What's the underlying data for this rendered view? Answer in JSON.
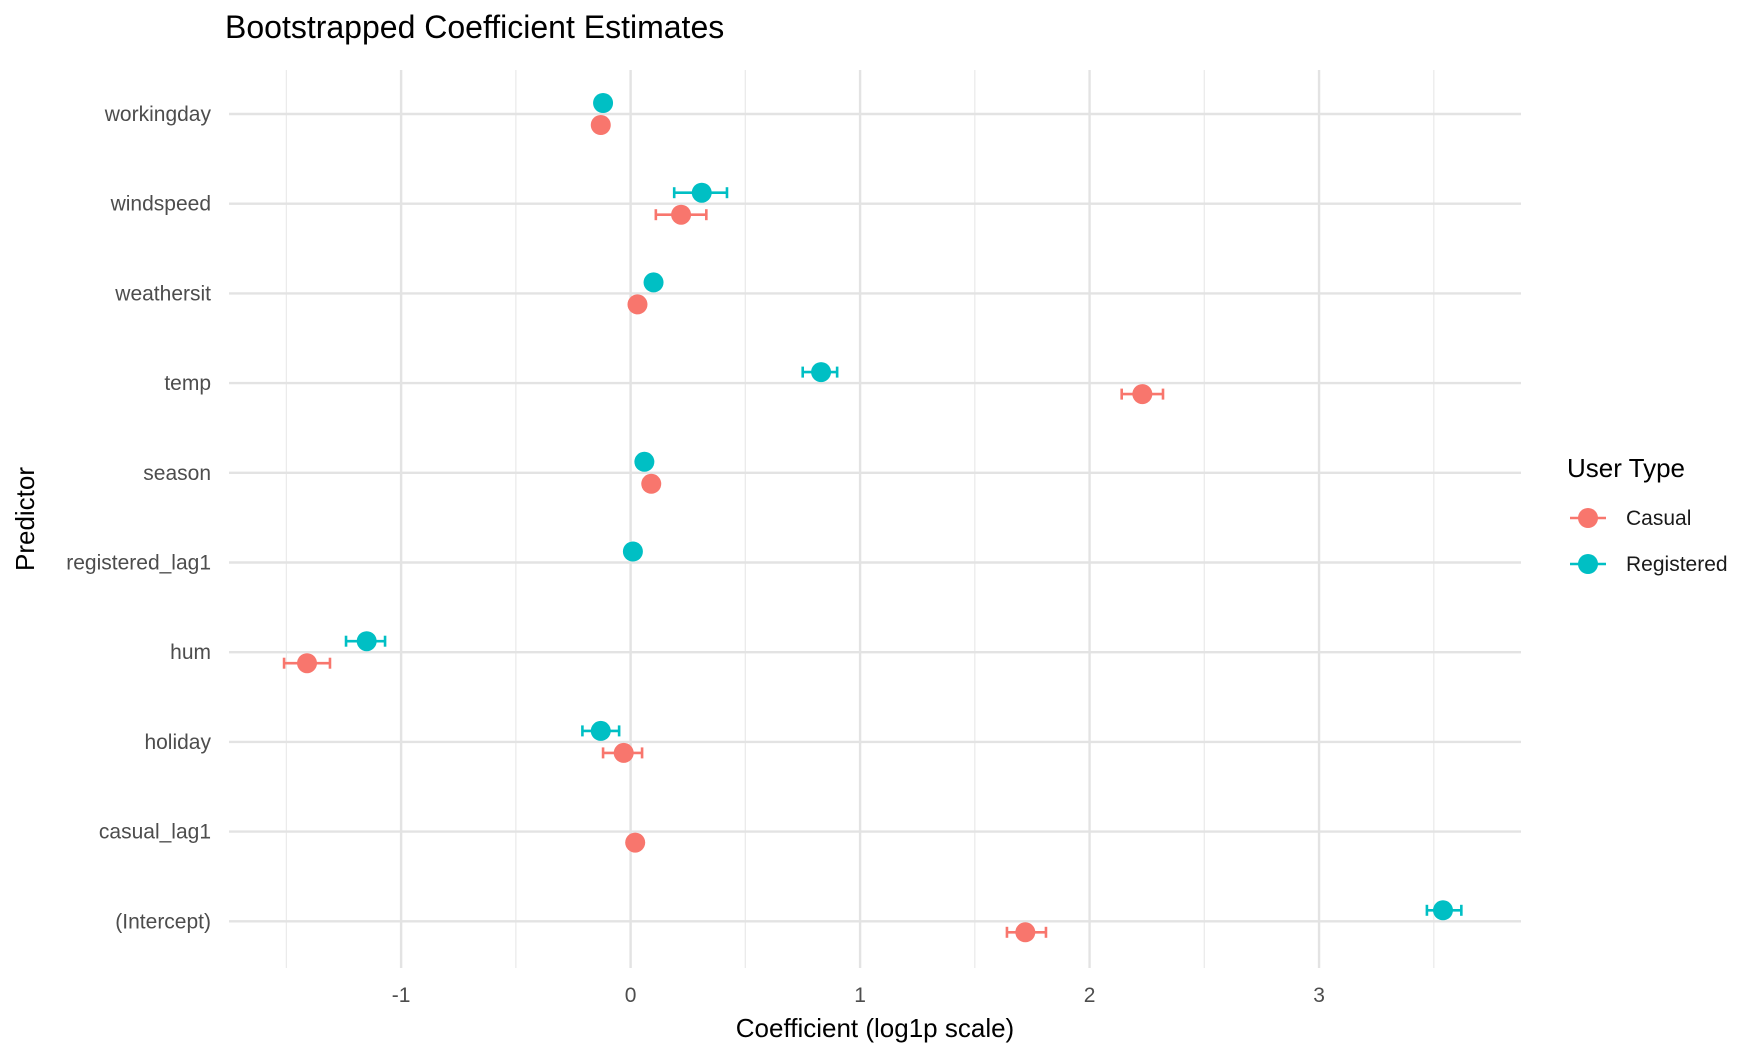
{
  "chart_data": {
    "type": "scatter",
    "subtype": "dot-and-errorbar",
    "title": "Bootstrapped Coefficient Estimates",
    "xlabel": "Coefficient (log1p scale)",
    "ylabel": "Predictor",
    "xlim": [
      -1.75,
      3.88
    ],
    "x_ticks": [
      -1,
      0,
      1,
      2,
      3
    ],
    "x_tick_labels": [
      "-1",
      "0",
      "1",
      "2",
      "3"
    ],
    "x_minor_ticks": [
      -1.5,
      -0.5,
      0.5,
      1.5,
      2.5,
      3.5
    ],
    "categories": [
      "workingday",
      "windspeed",
      "weathersit",
      "temp",
      "season",
      "registered_lag1",
      "hum",
      "holiday",
      "casual_lag1",
      "(Intercept)"
    ],
    "legend": {
      "title": "User Type",
      "position": "right"
    },
    "grid": true,
    "series": [
      {
        "name": "Casual",
        "color": "#F8766D",
        "points": [
          {
            "category": "workingday",
            "value": -0.13,
            "lower": null,
            "upper": null
          },
          {
            "category": "windspeed",
            "value": 0.22,
            "lower": 0.11,
            "upper": 0.33
          },
          {
            "category": "weathersit",
            "value": 0.03,
            "lower": null,
            "upper": null
          },
          {
            "category": "temp",
            "value": 2.23,
            "lower": 2.14,
            "upper": 2.32
          },
          {
            "category": "season",
            "value": 0.09,
            "lower": null,
            "upper": null
          },
          {
            "category": "hum",
            "value": -1.41,
            "lower": -1.51,
            "upper": -1.31
          },
          {
            "category": "holiday",
            "value": -0.03,
            "lower": -0.12,
            "upper": 0.05
          },
          {
            "category": "casual_lag1",
            "value": 0.02,
            "lower": null,
            "upper": null
          },
          {
            "category": "(Intercept)",
            "value": 1.72,
            "lower": 1.64,
            "upper": 1.81
          }
        ]
      },
      {
        "name": "Registered",
        "color": "#00BFC4",
        "points": [
          {
            "category": "workingday",
            "value": -0.12,
            "lower": null,
            "upper": null
          },
          {
            "category": "windspeed",
            "value": 0.31,
            "lower": 0.19,
            "upper": 0.42
          },
          {
            "category": "weathersit",
            "value": 0.1,
            "lower": null,
            "upper": null
          },
          {
            "category": "temp",
            "value": 0.83,
            "lower": 0.75,
            "upper": 0.9
          },
          {
            "category": "season",
            "value": 0.06,
            "lower": null,
            "upper": null
          },
          {
            "category": "registered_lag1",
            "value": 0.01,
            "lower": null,
            "upper": null
          },
          {
            "category": "hum",
            "value": -1.15,
            "lower": -1.24,
            "upper": -1.07
          },
          {
            "category": "holiday",
            "value": -0.13,
            "lower": -0.21,
            "upper": -0.05
          },
          {
            "category": "(Intercept)",
            "value": 3.54,
            "lower": 3.47,
            "upper": 3.62
          }
        ]
      }
    ]
  }
}
